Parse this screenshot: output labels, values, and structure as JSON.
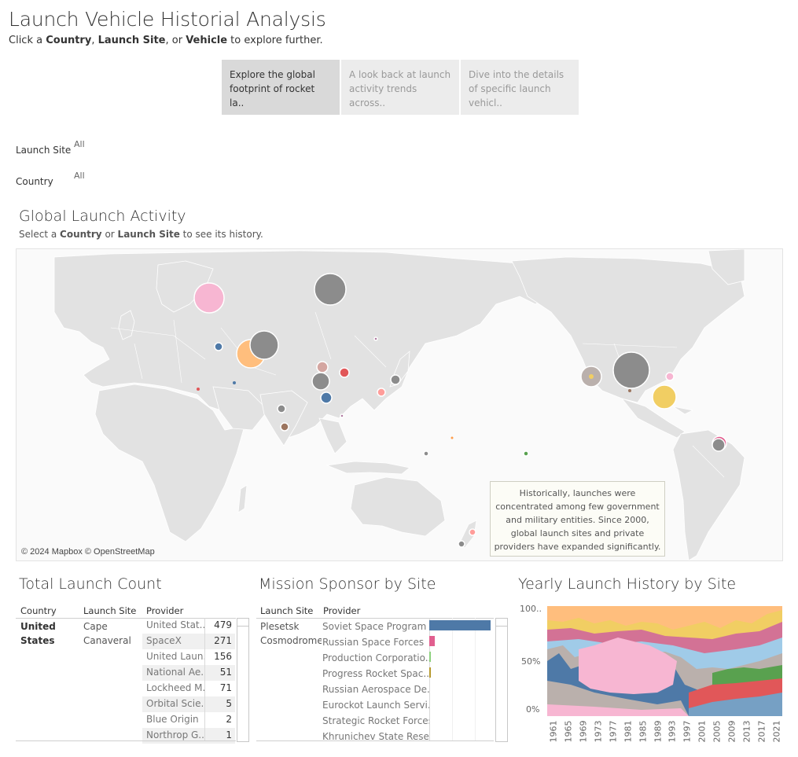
{
  "header": {
    "title": "Launch Vehicle Historial Analysis",
    "subtitle_prefix": "Click a ",
    "subtitle_country": "Country",
    "subtitle_sep1": ", ",
    "subtitle_site": "Launch Site",
    "subtitle_sep2": ", or ",
    "subtitle_vehicle": "Vehicle",
    "subtitle_suffix": " to explore further."
  },
  "nav_tabs": [
    {
      "label": "Explore the global footprint of rocket la..",
      "active": true
    },
    {
      "label": "A look back at launch activity trends across..",
      "active": false
    },
    {
      "label": "Dive into the details of specific launch vehicl..",
      "active": false
    }
  ],
  "filters": {
    "launch_site_label": "Launch Site",
    "launch_site_value": "All",
    "country_label": "Country",
    "country_value": "All"
  },
  "map_section": {
    "title": "Global Launch Activity",
    "sub_prefix": "Select a ",
    "sub_country": "Country",
    "sub_or": " or ",
    "sub_site": "Launch Site",
    "sub_suffix": " to see its history.",
    "attribution": "© 2024 Mapbox © OpenStreetMap",
    "annotation": "Historically, launches were concentrated among few government and military entities. Since 2000, global launch sites and private providers have expanded significantly."
  },
  "total_launch": {
    "title": "Total Launch Count",
    "headers": {
      "country": "Country",
      "site": "Launch Site",
      "provider": "Provider"
    },
    "country": "United States",
    "site": "Cape Canaveral",
    "rows": [
      {
        "provider": "United Stat..",
        "count": "479"
      },
      {
        "provider": "SpaceX",
        "count": "271"
      },
      {
        "provider": "United Laun..",
        "count": "156"
      },
      {
        "provider": "National Ae..",
        "count": "51"
      },
      {
        "provider": "Lockheed M..",
        "count": "71"
      },
      {
        "provider": "Orbital Scie..",
        "count": "5"
      },
      {
        "provider": "Blue Origin",
        "count": "2"
      },
      {
        "provider": "Northrop G..",
        "count": "1"
      }
    ]
  },
  "mission_sponsor": {
    "title": "Mission Sponsor by Site",
    "headers": {
      "site": "Launch Site",
      "provider": "Provider"
    },
    "site": "Plesetsk Cosmodrome",
    "rows": [
      {
        "provider": "Soviet Space Program",
        "value": 1.0,
        "color": "#4e79a7"
      },
      {
        "provider": "Russian Space Forces",
        "value": 0.09,
        "color": "#e15f8f"
      },
      {
        "provider": "Production Corporatio..",
        "value": 0.025,
        "color": "#8cd17d"
      },
      {
        "provider": "Progress Rocket Spac..",
        "value": 0.025,
        "color": "#b6992d"
      },
      {
        "provider": "Russian Aerospace De..",
        "value": 0,
        "color": "#cccccc"
      },
      {
        "provider": "Eurockot Launch Servi..",
        "value": 0,
        "color": "#cccccc"
      },
      {
        "provider": "Strategic Rocket Forces",
        "value": 0,
        "color": "#cccccc"
      },
      {
        "provider": "Khrunichev State Rese..",
        "value": 0,
        "color": "#cccccc"
      }
    ]
  },
  "yearly_history": {
    "title": "Yearly Launch History by Site",
    "y_ticks": [
      "100..",
      "50%",
      "0%"
    ],
    "x_ticks": [
      "1961",
      "1965",
      "1969",
      "1973",
      "1977",
      "1981",
      "1985",
      "1989",
      "1993",
      "1997",
      "2001",
      "2005",
      "2009",
      "2013",
      "2017",
      "2021"
    ]
  },
  "colors": {
    "bubble_gray": "#8c8c8c",
    "bubble_pink": "#f7b6d2",
    "bubble_orange": "#ffbe7d",
    "bubble_yellow": "#f1ce63",
    "bubble_blue": "#4e79a7",
    "bubble_red": "#e15759",
    "land": "#e2e2e2",
    "ocean": "#fafafa"
  }
}
